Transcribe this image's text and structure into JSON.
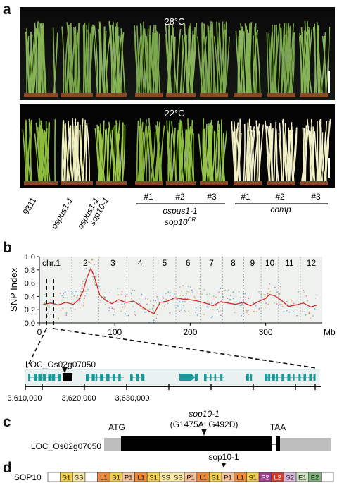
{
  "panel_a": {
    "label": "a",
    "top_temp": "28°C",
    "bottom_temp": "22°C",
    "genotypes": [
      {
        "l1": "9311",
        "l2": ""
      },
      {
        "l1": "ospus1-1",
        "l2": ""
      },
      {
        "l1": "ospus1-1",
        "l2": "sop10-1"
      }
    ],
    "lines": [
      "#1",
      "#2",
      "#3",
      "#1",
      "#2",
      "#3"
    ],
    "group1_l1": "ospus1-1",
    "group1_l2": "sop10",
    "group1_sup": "CR",
    "group2": "comp"
  },
  "panel_b": {
    "label": "b",
    "ylabel": "SNP Index",
    "xlabel": "Mb",
    "gene_name": "LOC_Os02g07050",
    "coords": [
      "3,610,000",
      "3,620,000",
      "3,630,000"
    ]
  },
  "chart_data": {
    "type": "line",
    "ylabel": "SNP Index",
    "xlabel": "Mb",
    "xlim": [
      0,
      375
    ],
    "ylim": [
      0,
      1.0
    ],
    "xticks": [
      0,
      100,
      200,
      300
    ],
    "yticks": [
      0.0,
      0.2,
      0.4,
      0.6,
      0.8,
      1.0
    ],
    "chromosomes": [
      "chr.1",
      "2",
      "3",
      "4",
      "5",
      "6",
      "7",
      "8",
      "9",
      "10",
      "11",
      "12"
    ],
    "chromosome_boundaries": [
      43,
      79,
      116,
      151,
      181,
      213,
      243,
      271,
      294,
      317,
      346
    ],
    "series": [
      {
        "x": [
          5,
          15,
          25,
          35,
          45,
          52,
          58,
          63,
          68,
          72,
          76,
          80,
          88,
          96,
          105,
          115,
          125,
          135,
          145,
          152,
          160,
          170,
          180,
          190,
          200,
          210,
          220,
          230,
          240,
          250,
          260,
          270,
          280,
          290,
          300,
          305,
          312,
          320,
          330,
          340,
          350,
          360,
          368
        ],
        "y": [
          0.28,
          0.3,
          0.27,
          0.31,
          0.28,
          0.35,
          0.48,
          0.68,
          0.82,
          0.73,
          0.58,
          0.42,
          0.34,
          0.29,
          0.35,
          0.31,
          0.33,
          0.25,
          0.18,
          0.14,
          0.31,
          0.33,
          0.38,
          0.36,
          0.35,
          0.33,
          0.3,
          0.26,
          0.32,
          0.3,
          0.28,
          0.31,
          0.26,
          0.32,
          0.37,
          0.43,
          0.41,
          0.35,
          0.25,
          0.27,
          0.3,
          0.24,
          0.27
        ]
      }
    ]
  },
  "panel_c": {
    "label": "c",
    "gene_name": "LOC_Os02g07050",
    "mutation_name": "sop10-1",
    "mutation_detail": "(G1475A; G492D)",
    "start": "ATG",
    "stop": "TAA"
  },
  "panel_d": {
    "label": "d",
    "protein": "SOP10",
    "marker": "sop10-1",
    "repeats": [
      {
        "name": "",
        "color": "#ffffff"
      },
      {
        "name": "S1",
        "color": "#f2d04a"
      },
      {
        "name": "SS",
        "color": "#fbe9a6"
      },
      {
        "name": "",
        "color": "#ffffff"
      },
      {
        "name": "L1",
        "color": "#ef8b3c"
      },
      {
        "name": "S1",
        "color": "#f2d04a"
      },
      {
        "name": "P1",
        "color": "#f6c49e"
      },
      {
        "name": "L1",
        "color": "#ef8b3c"
      },
      {
        "name": "S1",
        "color": "#f2d04a"
      },
      {
        "name": "SS",
        "color": "#fbe9a6"
      },
      {
        "name": "SS",
        "color": "#fbe9a6"
      },
      {
        "name": "P1",
        "color": "#f6c49e"
      },
      {
        "name": "L1",
        "color": "#ef8b3c"
      },
      {
        "name": "S1",
        "color": "#f2d04a"
      },
      {
        "name": "P1",
        "color": "#f6c49e"
      },
      {
        "name": "L1",
        "color": "#ef8b3c"
      },
      {
        "name": "S1",
        "color": "#f2d04a"
      },
      {
        "name": "P2",
        "color": "#9c3d8e"
      },
      {
        "name": "L2",
        "color": "#d63b2c"
      },
      {
        "name": "S2",
        "color": "#d9b8dc"
      },
      {
        "name": "E1",
        "color": "#cfe5c2"
      },
      {
        "name": "E2",
        "color": "#7fb47c"
      },
      {
        "name": "",
        "color": "#ffffff"
      }
    ]
  }
}
